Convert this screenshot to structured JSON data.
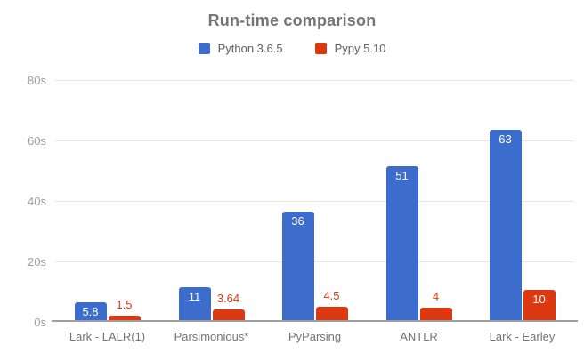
{
  "chart_data": {
    "type": "bar",
    "title": "Run-time comparison",
    "categories": [
      "Lark - LALR(1)",
      "Parsimonious*",
      "PyParsing",
      "ANTLR",
      "Lark - Earley"
    ],
    "series": [
      {
        "name": "Python 3.6.5",
        "color": "#3d6dcc",
        "values": [
          5.8,
          11,
          36,
          51,
          63
        ]
      },
      {
        "name": "Pypy 5.10",
        "color": "#dc3912",
        "values": [
          1.5,
          3.64,
          4.5,
          4,
          10
        ]
      }
    ],
    "xlabel": "",
    "ylabel": "",
    "ylim": [
      0,
      80
    ],
    "y_ticks": [
      {
        "value": 0,
        "label": "0s"
      },
      {
        "value": 20,
        "label": "20s"
      },
      {
        "value": 40,
        "label": "40s"
      },
      {
        "value": 60,
        "label": "60s"
      },
      {
        "value": 80,
        "label": "80s"
      }
    ],
    "grid": true,
    "legend_position": "top",
    "value_labels_shown": true
  },
  "colors": {
    "background": "#ffffff",
    "title_text": "#757575",
    "legend_text": "#616161",
    "axis_text": "#9e9e9e",
    "category_text": "#757575",
    "gridline": "#e6e6e6",
    "baseline": "#9e9e9e",
    "bar_label_inside": "#ffffff"
  }
}
